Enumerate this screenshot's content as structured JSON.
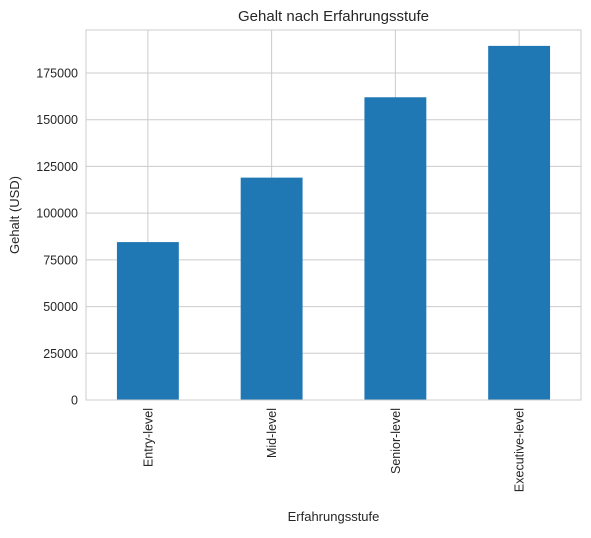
{
  "chart_data": {
    "type": "bar",
    "title": "Gehalt nach Erfahrungsstufe",
    "xlabel": "Erfahrungsstufe",
    "ylabel": "Gehalt (USD)",
    "categories": [
      "Entry-level",
      "Mid-level",
      "Senior-level",
      "Executive-level"
    ],
    "values": [
      84500,
      119000,
      162000,
      189500
    ],
    "ylim": [
      0,
      198000
    ],
    "yticks": [
      0,
      25000,
      50000,
      75000,
      100000,
      125000,
      150000,
      175000
    ],
    "ytick_labels": [
      "0",
      "25000",
      "50000",
      "75000",
      "100000",
      "125000",
      "150000",
      "175000"
    ],
    "x_tick_rotation": "vertical",
    "grid": true,
    "legend": false,
    "bar_color": "#1f77b4",
    "grid_color": "#cccccc",
    "text_color": "#262626"
  }
}
